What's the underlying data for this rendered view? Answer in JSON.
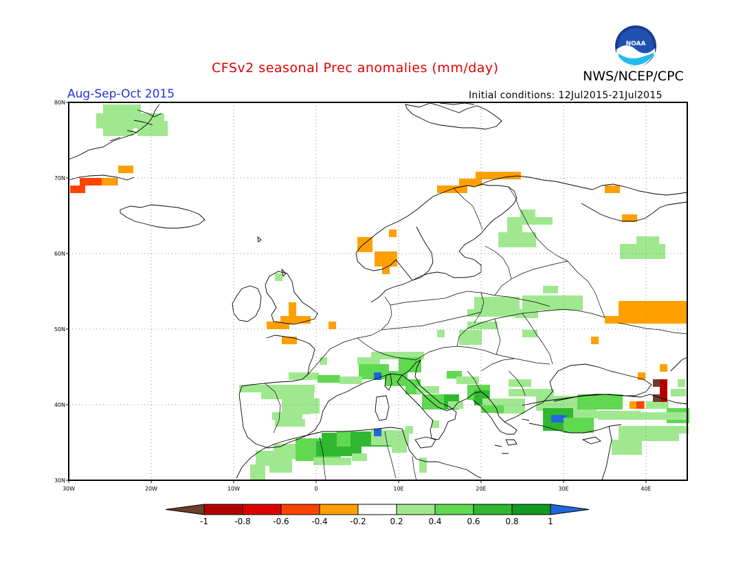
{
  "header": {
    "title": "CFSv2 seasonal Prec anomalies (mm/day)",
    "organization": "NWS/NCEP/CPC",
    "period": "Aug-Sep-Oct 2015",
    "initial_conditions": "Initial conditions: 12Jul2015-21Jul2015"
  },
  "logo": {
    "text": "NOAA"
  },
  "map": {
    "lon_range": [
      -30,
      45
    ],
    "lat_range": [
      30,
      80
    ],
    "lon_ticks": [
      "30W",
      "20W",
      "10W",
      "0",
      "10E",
      "20E",
      "30E",
      "40E"
    ],
    "lat_ticks": [
      "30N",
      "40N",
      "50N",
      "60N",
      "70N",
      "80N"
    ],
    "grid": true
  },
  "colorbar": {
    "labels": [
      "-1",
      "-0.8",
      "-0.6",
      "-0.4",
      "-0.2",
      "0.2",
      "0.4",
      "0.6",
      "0.8",
      "1"
    ],
    "colors": [
      "#6b3f2a",
      "#b40000",
      "#dd0000",
      "#ff4400",
      "#ffa000",
      "#ffffff",
      "#a0e890",
      "#60d850",
      "#30b830",
      "#109a20",
      "#2266dd"
    ]
  }
}
